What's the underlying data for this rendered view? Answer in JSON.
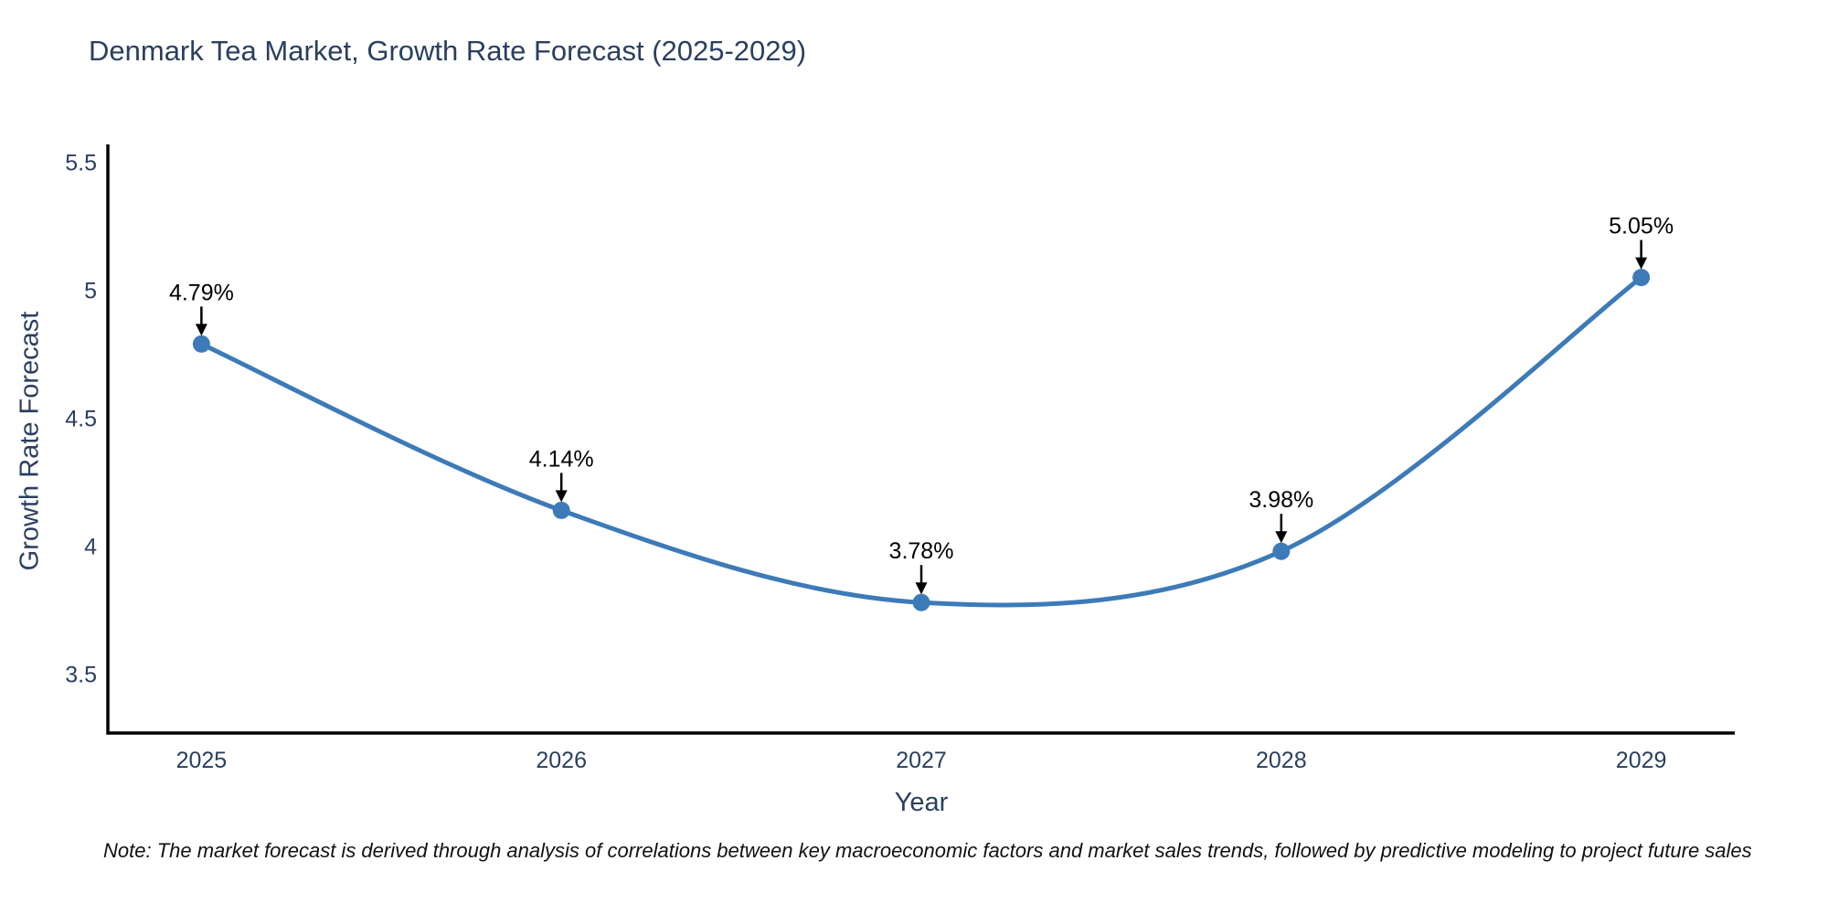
{
  "title": "Denmark Tea Market, Growth Rate Forecast (2025-2029)",
  "note": "Note: The market forecast is derived through analysis of correlations between key macroeconomic factors and market sales trends, followed by predictive modeling to project future sales",
  "chart_data": {
    "type": "line",
    "title": "Denmark Tea Market, Growth Rate Forecast (2025-2029)",
    "xlabel": "Year",
    "ylabel": "Growth Rate Forecast",
    "x": [
      2025,
      2026,
      2027,
      2028,
      2029
    ],
    "values": [
      4.79,
      4.14,
      3.78,
      3.98,
      5.05
    ],
    "point_labels": [
      "4.79%",
      "4.14%",
      "3.78%",
      "3.98%",
      "5.05%"
    ],
    "xticks": [
      2025,
      2026,
      2027,
      2028,
      2029
    ],
    "yticks": [
      3.5,
      4,
      4.5,
      5,
      5.5
    ],
    "xlim": [
      2024.74,
      2029.26
    ],
    "ylim": [
      3.27,
      5.57
    ],
    "line_shape": "spline",
    "grid": false,
    "legend": "none",
    "colors": {
      "line": "#3d7ab8",
      "marker": "#3d7ab8",
      "annotation": "#000000",
      "axis_line": "#000000",
      "title_text": "#2a3f5f",
      "tick_text": "#2a3f5f"
    }
  }
}
